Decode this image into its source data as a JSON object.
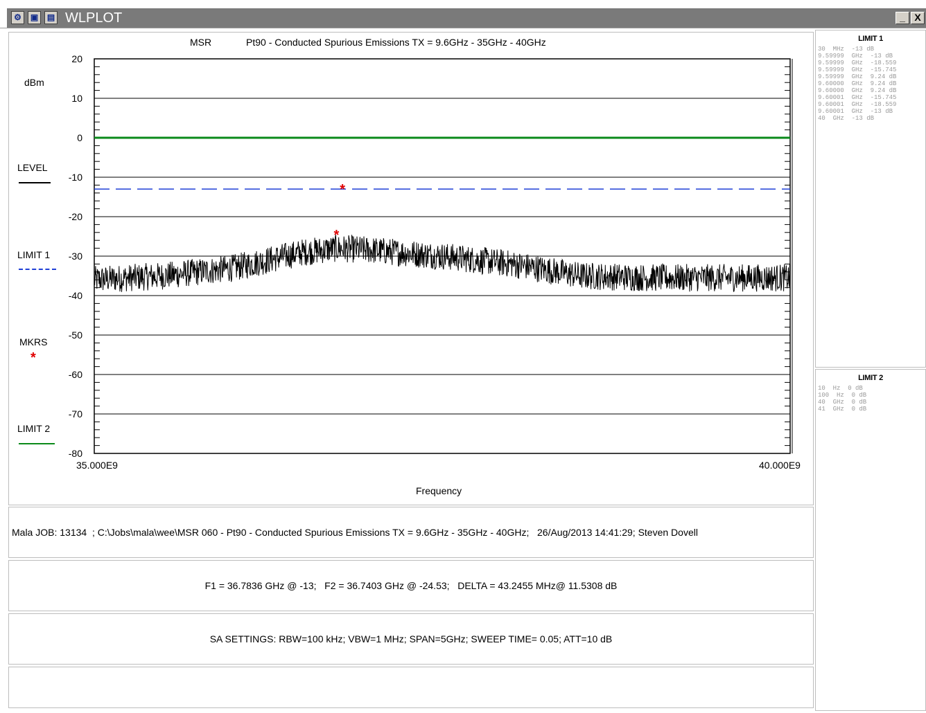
{
  "window": {
    "title": "WLPLOT",
    "minimize_label": "_",
    "close_label": "X",
    "system_icons": [
      "app-icon",
      "window-icon",
      "restore-icon"
    ]
  },
  "plot": {
    "header_left": "MSR",
    "header_title": "Pt90 - Conducted Spurious Emissions TX = 9.6GHz - 35GHz - 40GHz",
    "y_unit": "dBm",
    "x_label": "Frequency",
    "x_start_label": "35.000E9",
    "x_end_label": "40.000E9",
    "y_ticks": [
      "20",
      "10",
      "0",
      "-10",
      "-20",
      "-30",
      "-40",
      "-50",
      "-60",
      "-70",
      "-80"
    ]
  },
  "legend": {
    "level": "LEVEL",
    "limit1": "LIMIT 1",
    "mkrs": "MKRS",
    "mkrs_symbol": "*",
    "limit2": "LIMIT 2"
  },
  "colors": {
    "level": "#000000",
    "limit1": "#1f3fd6",
    "limit2": "#0a8a1a",
    "marker": "#e00000"
  },
  "info": {
    "job_line": "Mala JOB: 13134  ; C:\\Jobs\\mala\\wee\\MSR 060 - Pt90 - Conducted Spurious Emissions TX = 9.6GHz - 35GHz - 40GHz;   26/Aug/2013 14:41:29; Steven Dovell",
    "marker_line": "F1 = 36.7836 GHz @ -13;   F2 = 36.7403 GHz @ -24.53;   DELTA = 43.2455 MHz@ 11.5308 dB",
    "sa_line": "SA SETTINGS: RBW=100 kHz; VBW=1 MHz; SPAN=5GHz; SWEEP TIME= 0.05; ATT=10 dB",
    "blank_line": ""
  },
  "limit1_panel": {
    "title": "LIMIT 1",
    "rows": [
      "30  MHz  -13 dB",
      "9.59999  GHz  -13 dB",
      "9.59999  GHz  -18.559",
      "9.59999  GHz  -15.745",
      "9.59999  GHz  9.24 dB",
      "9.60000  GHz  9.24 dB",
      "9.60000  GHz  9.24 dB",
      "9.60001  GHz  -15.745",
      "9.60001  GHz  -18.559",
      "9.60001  GHz  -13 dB",
      "40  GHz  -13 dB"
    ]
  },
  "limit2_panel": {
    "title": "LIMIT 2",
    "rows": [
      "10  Hz  0 dB",
      "100  Hz  0 dB",
      "40  GHz  0 dB",
      "41  GHz  0 dB"
    ]
  },
  "chart_data": {
    "type": "line",
    "title": "Pt90 - Conducted Spurious Emissions TX = 9.6GHz - 35GHz - 40GHz",
    "xlabel": "Frequency",
    "ylabel": "dBm",
    "xlim": [
      35.0,
      40.0
    ],
    "ylim": [
      -80,
      20
    ],
    "grid": true,
    "series": [
      {
        "name": "LEVEL",
        "x_ghz": [
          35.0,
          35.5,
          36.0,
          36.5,
          36.75,
          37.0,
          37.5,
          38.0,
          38.5,
          39.0,
          39.5,
          40.0
        ],
        "values": [
          -36,
          -35,
          -33,
          -29,
          -28,
          -28.5,
          -30,
          -32,
          -35,
          -35.5,
          -35.5,
          -35.5
        ],
        "noise_amplitude_db": 3.5
      },
      {
        "name": "LIMIT 1",
        "x_ghz": [
          35.0,
          40.0
        ],
        "values": [
          -13,
          -13
        ],
        "style": "dashed"
      },
      {
        "name": "LIMIT 2",
        "x_ghz": [
          35.0,
          40.0
        ],
        "values": [
          0,
          0
        ]
      }
    ],
    "markers": [
      {
        "label": "F1",
        "x_ghz": 36.7836,
        "value": -13
      },
      {
        "label": "F2",
        "x_ghz": 36.7403,
        "value": -24.53
      }
    ]
  }
}
